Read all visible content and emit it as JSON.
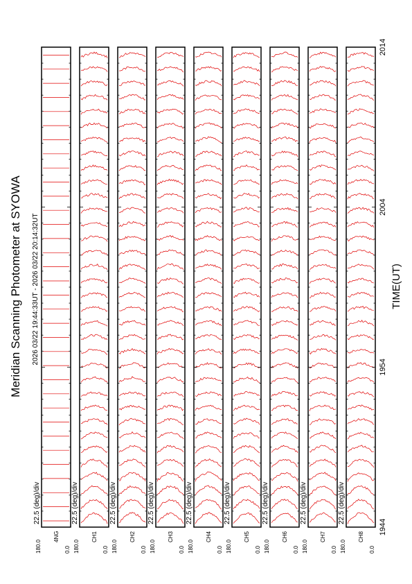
{
  "chart_data": {
    "type": "line",
    "title": "Meridian Scanning Photometer at SYOWA",
    "subtitle": "2026 03/22 19:44:33UT - 2026 03/22 20:14:32UT",
    "xlabel": "TIME(UT)",
    "x_ticks": [
      "1944",
      "1954",
      "2004",
      "2014"
    ],
    "xlim": [
      "19:44",
      "20:14"
    ],
    "ylim_labels": [
      "180.0",
      "0.0"
    ],
    "scale_label": "22.5 (deg)/div",
    "traces_per_panel": 34,
    "trace_color": "#e00000",
    "panels": [
      {
        "channel": "4NG"
      },
      {
        "channel": "CH1"
      },
      {
        "channel": "CH2"
      },
      {
        "channel": "CH3"
      },
      {
        "channel": "CH4"
      },
      {
        "channel": "CH5"
      },
      {
        "channel": "CH6"
      },
      {
        "channel": "CH7"
      },
      {
        "channel": "CH8"
      }
    ]
  }
}
